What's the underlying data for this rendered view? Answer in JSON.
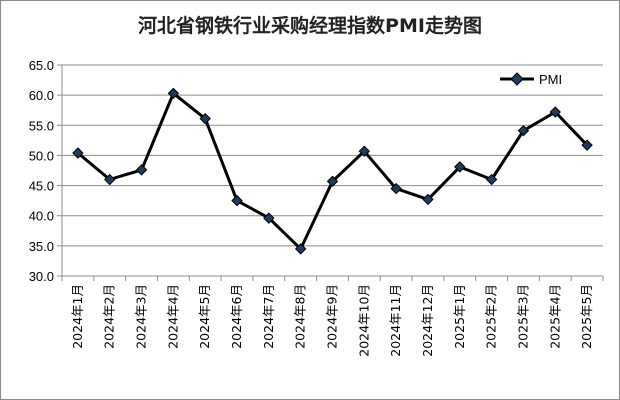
{
  "chart_data": {
    "type": "line",
    "title": "河北省钢铁行业采购经理指数PMI走势图",
    "xlabel": "",
    "ylabel": "",
    "categories": [
      "2024年1月",
      "2024年2月",
      "2024年3月",
      "2024年4月",
      "2024年5月",
      "2024年6月",
      "2024年7月",
      "2024年8月",
      "2024年9月",
      "2024年10月",
      "2024年11月",
      "2024年12月",
      "2025年1月",
      "2025年2月",
      "2025年3月",
      "2025年4月",
      "2025年5月"
    ],
    "series": [
      {
        "name": "PMI",
        "values": [
          50.4,
          46.0,
          47.6,
          60.3,
          56.1,
          42.5,
          39.6,
          34.5,
          45.7,
          50.7,
          44.5,
          42.7,
          48.1,
          46.0,
          54.1,
          57.2,
          51.7
        ]
      }
    ],
    "ylim": [
      30.0,
      65.0
    ],
    "yticks": [
      "30.0",
      "35.0",
      "40.0",
      "45.0",
      "50.0",
      "55.0",
      "60.0",
      "65.0"
    ],
    "grid": true,
    "legend": "top-right",
    "colors": {
      "line": "#000000",
      "marker": "#1f3a5f",
      "grid": "#8c8c8c"
    }
  }
}
